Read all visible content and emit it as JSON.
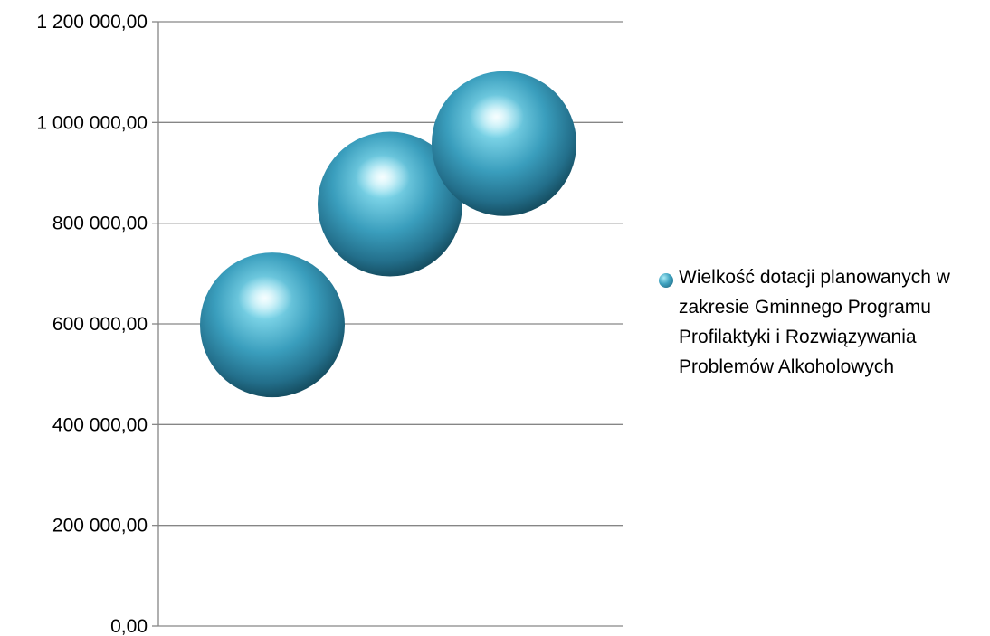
{
  "chart_data": {
    "type": "scatter",
    "title": "",
    "xlabel": "",
    "ylabel": "",
    "ylim": [
      0,
      1200000
    ],
    "y_ticks": [
      "0,00",
      "200 000,00",
      "400 000,00",
      "600 000,00",
      "800 000,00",
      "1 000 000,00",
      "1 200 000,00"
    ],
    "grid": true,
    "legend_position": "right",
    "series": [
      {
        "name": "Wielkość dotacji planowanych w zakresie Gminnego Programu Profilaktyki i Rozwiązywania Problemów Alkoholowych",
        "x": [
          1,
          2,
          3
        ],
        "values": [
          580000,
          820000,
          940000
        ],
        "color": "#3fa2bf"
      }
    ]
  }
}
